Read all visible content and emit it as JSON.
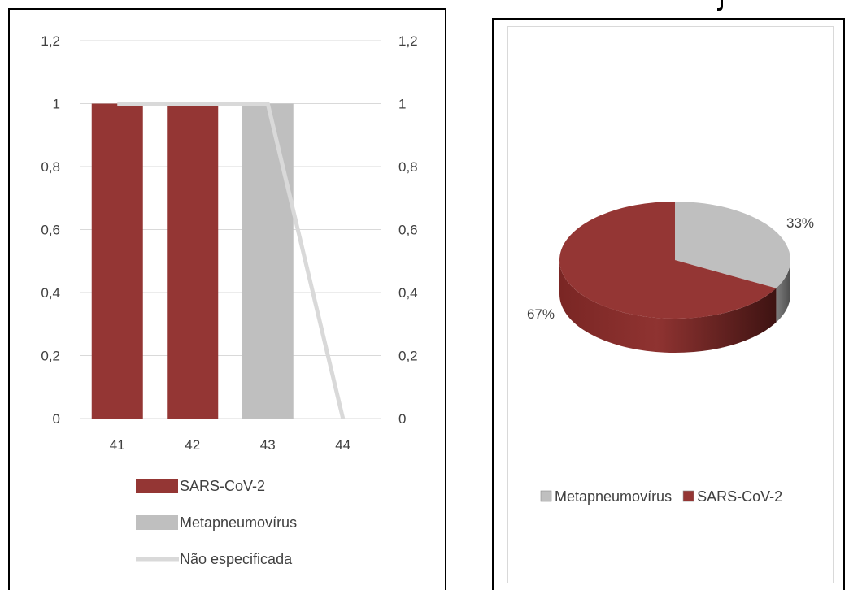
{
  "chart_data": [
    {
      "type": "bar",
      "categories": [
        "41",
        "42",
        "43",
        "44"
      ],
      "series": [
        {
          "name": "SARS-CoV-2",
          "type": "bar",
          "color": "#943634",
          "values": [
            1,
            1,
            0,
            0
          ]
        },
        {
          "name": "Metapneumovírus",
          "type": "bar",
          "color": "#bfbfbf",
          "values": [
            0,
            0,
            1,
            0
          ]
        },
        {
          "name": "Não especificada",
          "type": "line",
          "color": "#d9d9d9",
          "values": [
            1,
            1,
            1,
            0
          ]
        }
      ],
      "ylim": [
        0,
        1.2
      ],
      "y_ticks": [
        "0",
        "0,2",
        "0,4",
        "0,6",
        "0,8",
        "1",
        "1,2"
      ],
      "y2_ticks": [
        "0",
        "0,2",
        "0,4",
        "0,6",
        "0,8",
        "1",
        "1,2"
      ],
      "grid": true,
      "legend": "bottom",
      "title": "",
      "xlabel": "",
      "ylabel": ""
    },
    {
      "type": "pie",
      "style": "3d",
      "slices": [
        {
          "name": "Metapneumovírus",
          "value": 33,
          "label": "33%",
          "color": "#bfbfbf"
        },
        {
          "name": "SARS-CoV-2",
          "value": 67,
          "label": "67%",
          "color": "#943634"
        }
      ],
      "legend": "bottom",
      "title": ""
    }
  ]
}
